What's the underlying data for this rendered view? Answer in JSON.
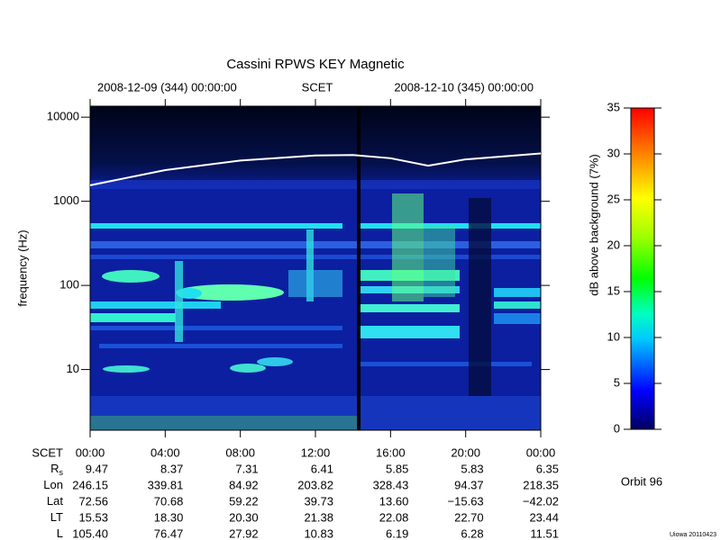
{
  "chart_data": {
    "type": "spectrogram",
    "title": "Cassini RPWS KEY Magnetic",
    "start_label": "2008-12-09 (344) 00:00:00",
    "time_label": "SCET",
    "end_label": "2008-12-10 (345) 00:00:00",
    "ylabel": "frequency (Hz)",
    "yscale": "log",
    "ylim": [
      1.9,
      13500
    ],
    "yticks": [
      10,
      100,
      1000,
      10000
    ],
    "xlim": [
      0,
      24
    ],
    "xticks": [
      {
        "value": 0,
        "label": "00:00"
      },
      {
        "value": 4,
        "label": "04:00"
      },
      {
        "value": 8,
        "label": "08:00"
      },
      {
        "value": 12,
        "label": "12:00"
      },
      {
        "value": 16,
        "label": "16:00"
      },
      {
        "value": 20,
        "label": "20:00"
      },
      {
        "value": 24,
        "label": "00:00"
      }
    ],
    "series": [
      {
        "color": "#ffffff",
        "x": [
          0,
          4,
          8,
          12,
          14,
          16,
          18,
          20,
          24
        ],
        "values": [
          1550,
          2350,
          3050,
          3500,
          3550,
          3250,
          2650,
          3150,
          3700
        ]
      }
    ],
    "colorbar": {
      "label": "dB above background (7%)",
      "lim": [
        0,
        35
      ],
      "ticks": [
        0,
        5,
        10,
        15,
        20,
        25,
        30,
        35
      ]
    },
    "ephemeris": {
      "row_label": "SCET",
      "rows": [
        {
          "name": "R",
          "name_sub": "s",
          "values": [
            "9.47",
            "8.37",
            "7.31",
            "6.41",
            "5.85",
            "5.83",
            "6.35"
          ]
        },
        {
          "name": "Lon",
          "values": [
            "246.15",
            "339.81",
            "84.92",
            "203.82",
            "328.43",
            "94.37",
            "218.35"
          ]
        },
        {
          "name": "Lat",
          "values": [
            "72.56",
            "70.68",
            "59.22",
            "39.73",
            "13.60",
            "−15.63",
            "−42.02"
          ]
        },
        {
          "name": "LT",
          "values": [
            "15.53",
            "18.30",
            "20.30",
            "21.38",
            "22.08",
            "22.70",
            "23.44"
          ]
        },
        {
          "name": "L",
          "values": [
            "105.40",
            "76.47",
            "27.92",
            "10.83",
            "6.19",
            "6.28",
            "11.51"
          ]
        }
      ]
    },
    "orbit": "Orbit 96",
    "footer": "Uiowa 20110423"
  }
}
